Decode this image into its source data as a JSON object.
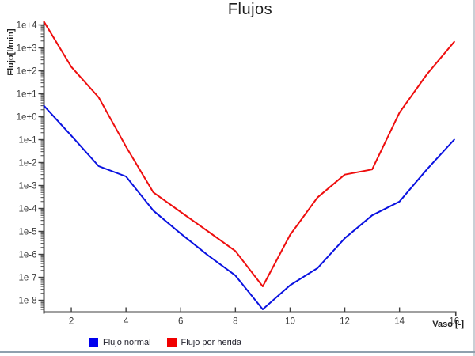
{
  "window": {
    "title": "Flujos"
  },
  "chart_data": {
    "type": "line",
    "title": "Flujos",
    "xlabel": "Vaso [-]",
    "ylabel": "Flujo[l/min]",
    "x": [
      1,
      2,
      3,
      4,
      5,
      6,
      7,
      8,
      9,
      10,
      11,
      12,
      13,
      14,
      15,
      16
    ],
    "x_tick_labels": [
      "2",
      "4",
      "6",
      "8",
      "10",
      "12",
      "14",
      "16"
    ],
    "x_ticks": [
      2,
      4,
      6,
      8,
      10,
      12,
      14,
      16
    ],
    "xlim": [
      1,
      16
    ],
    "y_scale": "log",
    "y_tick_labels": [
      "1e+4",
      "1e+3",
      "1e+2",
      "1e+1",
      "1e+0",
      "1e-1",
      "1e-2",
      "1e-3",
      "1e-4",
      "1e-5",
      "1e-6",
      "1e-7",
      "1e-8"
    ],
    "y_tick_decades": [
      4,
      3,
      2,
      1,
      0,
      -1,
      -2,
      -3,
      -4,
      -5,
      -6,
      -7,
      -8
    ],
    "ylim": [
      1e-08,
      10000.0
    ],
    "grid": false,
    "legend_position": "bottom",
    "series": [
      {
        "name": "Flujo normal",
        "color": "#0a12e0",
        "swatch_color": "#0000ee",
        "values": [
          3,
          0.15,
          0.007,
          0.0025,
          8e-05,
          8e-06,
          9e-07,
          1.2e-07,
          4e-09,
          4.5e-08,
          2.5e-07,
          5e-06,
          5e-05,
          0.0002,
          0.005,
          0.1
        ]
      },
      {
        "name": "Flujo por herida",
        "color": "#ee0e0e",
        "swatch_color": "#f00000",
        "values": [
          14000,
          150,
          7,
          0.05,
          0.0005,
          7e-05,
          1e-05,
          1.4e-06,
          4e-08,
          7e-06,
          0.0003,
          0.003,
          0.005,
          1.5,
          70,
          1850
        ]
      }
    ],
    "axis_color": "#404040",
    "tick_label_color": "#3a3a3a"
  }
}
